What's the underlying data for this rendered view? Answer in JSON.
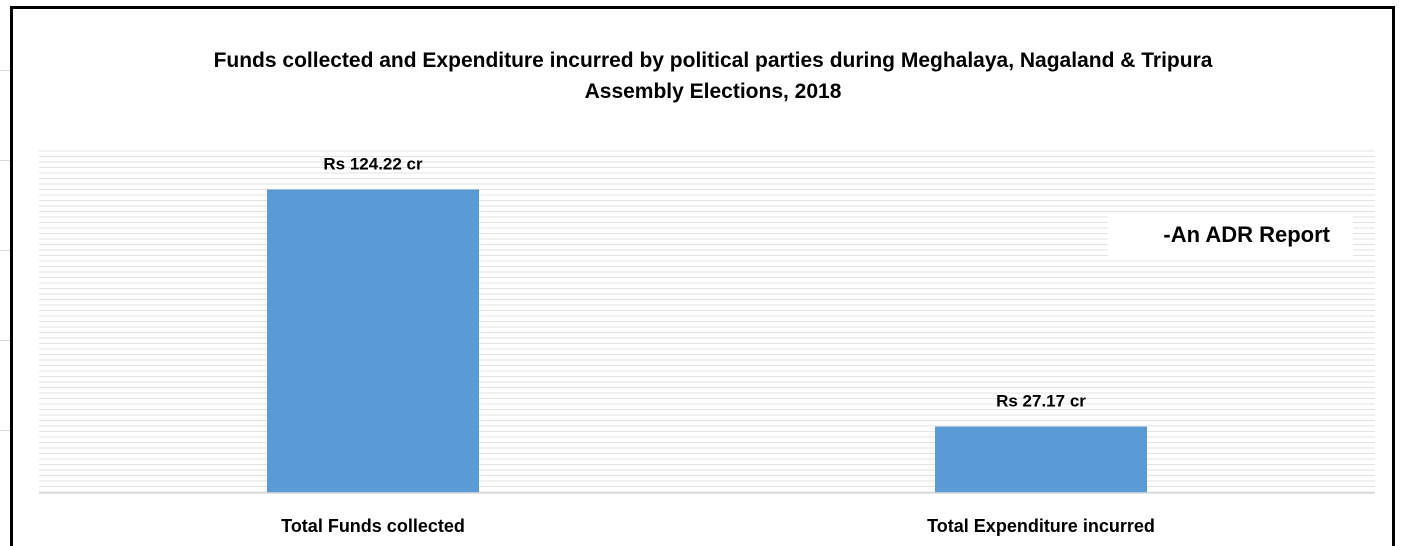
{
  "chart_data": {
    "type": "bar",
    "title": "Funds collected and Expenditure incurred by political parties during Meghalaya, Nagaland & Tripura Assembly Elections, 2018",
    "title_lines": [
      "Funds collected and Expenditure incurred by political parties during Meghalaya, Nagaland & Tripura",
      "Assembly Elections, 2018"
    ],
    "categories": [
      "Total Funds collected",
      "Total Expenditure incurred"
    ],
    "values": [
      124.22,
      27.17
    ],
    "data_labels": [
      "Rs 124.22 cr",
      "Rs 27.17 cr"
    ],
    "annotation": "-An ADR Report",
    "bar_color": "#5b9bd5",
    "ylim": [
      0,
      140
    ],
    "grid": true,
    "legend": "none"
  }
}
